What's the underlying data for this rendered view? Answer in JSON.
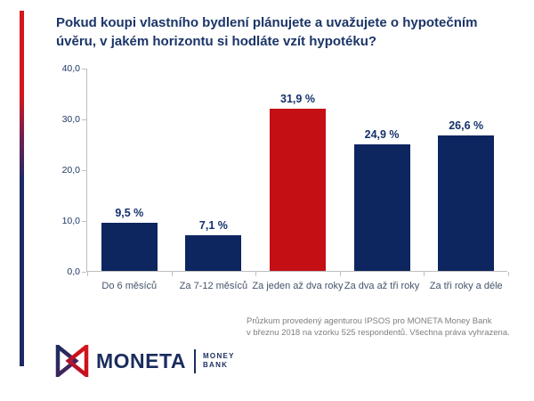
{
  "header": {
    "title_line1": "Pokud koupi vlastního bydlení plánujete a uvažujete o hypotečním",
    "title_line2": "úvěru, v jakém horizontu si hodláte vzít hypotéku?"
  },
  "chart_data": {
    "type": "bar",
    "title": "Pokud koupi vlastního bydlení plánujete a uvažujete o hypotečním úvěru, v jakém horizontu si hodláte vzít hypotéku?",
    "categories": [
      "Do 6 měsíců",
      "Za 7-12 měsíců",
      "Za jeden až dva roky",
      "Za dva až tři roky",
      "Za tři roky a déle"
    ],
    "values": [
      9.5,
      7.1,
      31.9,
      24.9,
      26.6
    ],
    "value_labels": [
      "9,5 %",
      "7,1 %",
      "31,9 %",
      "24,9 %",
      "26,6 %"
    ],
    "bar_colors": [
      "#0e2660",
      "#0e2660",
      "#c40f14",
      "#0e2660",
      "#0e2660"
    ],
    "highlight_index": 2,
    "xlabel": "",
    "ylabel": "",
    "ylim": [
      0,
      40
    ],
    "y_ticks": [
      0,
      10,
      20,
      30,
      40
    ],
    "y_tick_labels": [
      "0,0",
      "10,0",
      "20,0",
      "30,0",
      "40,0"
    ],
    "grid": false,
    "legend": false
  },
  "footnote": {
    "line1": "Průzkum provedený agenturou IPSOS pro MONETA Money Bank",
    "line2": "v březnu 2018 na vzorku 525 respondentů.  Všechna práva vyhrazena."
  },
  "logo": {
    "brand": "MONETA",
    "sub_line1": "MONEY",
    "sub_line2": "BANK"
  },
  "colors": {
    "bar_navy": "#0e2660",
    "bar_red": "#c40f14",
    "title_text": "#1b3568",
    "value_text": "#14316b",
    "category_text": "#44546a",
    "axis_line": "#bfbfbf",
    "y_tick_text": "#1f3864",
    "footnote_text": "#7f7f7f",
    "logo_navy": "#1b2d5e",
    "stripe_red": "#d4161e",
    "stripe_navy": "#1c2a66"
  }
}
